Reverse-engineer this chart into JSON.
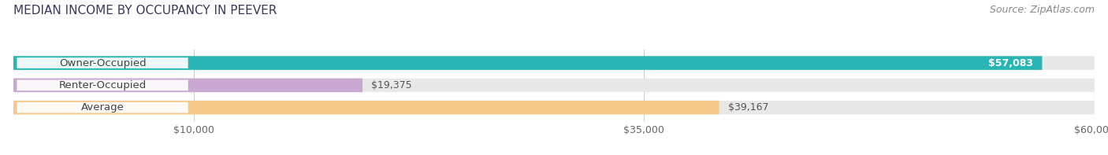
{
  "title": "MEDIAN INCOME BY OCCUPANCY IN PEEVER",
  "source": "Source: ZipAtlas.com",
  "categories": [
    "Owner-Occupied",
    "Renter-Occupied",
    "Average"
  ],
  "values": [
    57083,
    19375,
    39167
  ],
  "labels": [
    "$57,083",
    "$19,375",
    "$39,167"
  ],
  "label_inside": [
    true,
    false,
    false
  ],
  "bar_colors": [
    "#29b5b5",
    "#c9a8d4",
    "#f5c98a"
  ],
  "xlim": [
    0,
    60000
  ],
  "xticks": [
    10000,
    35000,
    60000
  ],
  "xtick_labels": [
    "$10,000",
    "$35,000",
    "$60,000"
  ],
  "background_color": "#ffffff",
  "bar_background_color": "#e8e8e8",
  "title_fontsize": 11,
  "source_fontsize": 9,
  "label_fontsize": 9,
  "cat_fontsize": 9.5,
  "tick_fontsize": 9,
  "figwidth": 14.06,
  "figheight": 1.97,
  "dpi": 100
}
